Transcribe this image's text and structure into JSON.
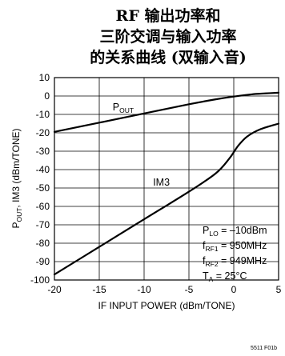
{
  "chart_data": {
    "type": "line",
    "title_lines": [
      "RF 输出功率和",
      "三阶交调与输入功率",
      "的关系曲线 (双输入音)"
    ],
    "xlabel": "IF INPUT POWER (dBm/TONE)",
    "ylabel": {
      "p": "P",
      "p_sub": "OUT",
      "rest": ", IM3 (dBm/TONE)"
    },
    "xlim": [
      -20,
      5
    ],
    "ylim": [
      -100,
      10
    ],
    "x_ticks": [
      -20,
      -15,
      -10,
      -5,
      0,
      5
    ],
    "y_ticks": [
      10,
      0,
      -10,
      -20,
      -30,
      -40,
      -50,
      -60,
      -70,
      -80,
      -90,
      -100
    ],
    "grid": true,
    "series": [
      {
        "name": "POUT",
        "x": [
          -20,
          -15,
          -10,
          -5,
          -2,
          0,
          2,
          3.5,
          5
        ],
        "y": [
          -19.5,
          -14.5,
          -9.5,
          -4.5,
          -1.8,
          -0.3,
          0.9,
          1.4,
          1.8
        ]
      },
      {
        "name": "IM3",
        "x": [
          -20,
          -15,
          -10,
          -5,
          -2,
          -0.5,
          0.5,
          1.5,
          3,
          5
        ],
        "y": [
          -97,
          -82,
          -67,
          -52,
          -42,
          -34,
          -27,
          -22,
          -18,
          -15
        ]
      }
    ],
    "labels": [
      {
        "series": "POUT",
        "main": "P",
        "sub": "OUT",
        "x": -13.5,
        "y": -6
      },
      {
        "series": "IM3",
        "main": "IM3",
        "sub": "",
        "x": -9,
        "y": -47
      }
    ],
    "conditions": [
      {
        "main": "P",
        "sub": "LO",
        "rest": " = –10dBm"
      },
      {
        "main": "f",
        "sub": "RF1",
        "rest": " = 950MHz"
      },
      {
        "main": "f",
        "sub": "RF2",
        "rest": " = 949MHz"
      },
      {
        "main": "T",
        "sub": "A",
        "rest": " = 25°C"
      }
    ]
  },
  "figure_id": "5511 F01b"
}
